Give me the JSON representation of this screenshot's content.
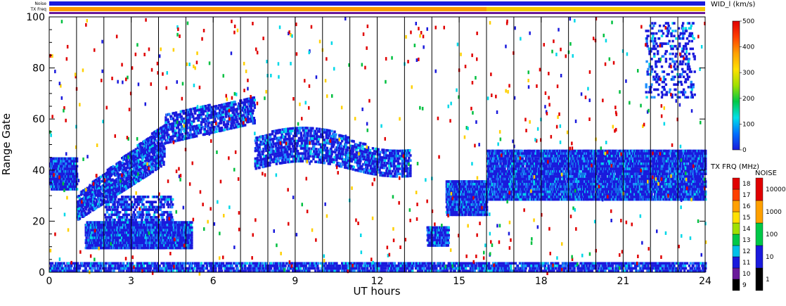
{
  "chart_data": {
    "type": "heatmap",
    "title": "",
    "xlabel": "UT hours",
    "ylabel": "Range Gate",
    "xlim": [
      0,
      24
    ],
    "ylim": [
      0,
      100
    ],
    "x_ticks": [
      0,
      3,
      6,
      9,
      12,
      15,
      18,
      21,
      24
    ],
    "y_ticks": [
      0,
      20,
      40,
      60,
      80,
      100
    ],
    "scan_boundaries_ut": [
      1,
      2,
      3,
      4,
      5,
      6,
      7,
      8,
      9,
      10,
      11,
      12,
      13,
      14,
      15,
      16,
      17,
      18,
      19,
      20,
      21,
      22,
      23
    ],
    "top_bars": {
      "noise_label": "Noise",
      "txfreq_label": "TX Freq",
      "noise_color": "#1a1adc",
      "txfreq_segments": [
        {
          "from": 0,
          "to": 16,
          "color": "#ff9a00"
        },
        {
          "from": 16,
          "to": 24,
          "color": "#f5c800"
        }
      ]
    },
    "main_colorbar": {
      "title": "WID_l (km/s)",
      "ticks": [
        0,
        100,
        200,
        300,
        400,
        500
      ],
      "colors": [
        "#1a1adc",
        "#0070ff",
        "#00e0e8",
        "#00c848",
        "#a0e000",
        "#ffe000",
        "#ffa000",
        "#ff4000",
        "#e00000"
      ]
    },
    "txfreq_colorbar": {
      "title": "TX FRQ (MHz)",
      "labels": [
        "9",
        "10",
        "11",
        "12",
        "13",
        "14",
        "15",
        "16",
        "17",
        "18"
      ],
      "colors": [
        "#000000",
        "#6a1a9a",
        "#1a1adc",
        "#00c0e8",
        "#00c848",
        "#a0e000",
        "#ffe000",
        "#ffa000",
        "#ff4000",
        "#e00000"
      ]
    },
    "noise_colorbar": {
      "title": "NOISE",
      "labels": [
        "1",
        "10",
        "100",
        "1000",
        "10000"
      ],
      "colors": [
        "#000000",
        "#1a1adc",
        "#00c848",
        "#ffa000",
        "#e00000"
      ]
    },
    "scatter_colors": {
      "main": "#1a1adc",
      "light": "#1e90ff",
      "cyan": "#00d8e8",
      "red": "#e00000",
      "green": "#00c040",
      "yellow": "#ffd000"
    },
    "bands": [
      {
        "name": "lower-band",
        "t0": 0,
        "t1": 24,
        "g0": 0,
        "g1": 4,
        "density": 0.55
      },
      {
        "name": "morning-echo",
        "t0": 0,
        "t1": 1,
        "g0": 32,
        "g1": 45,
        "density": 0.8
      },
      {
        "name": "morning-rise",
        "t0": 1,
        "t1": 4.2,
        "g0": 20,
        "g1": 58,
        "density": 0.6
      },
      {
        "name": "near-echo",
        "t0": 1.3,
        "t1": 5.2,
        "g0": 9,
        "g1": 20,
        "density": 0.85
      },
      {
        "name": "mid-echo",
        "t0": 2,
        "t1": 4.5,
        "g0": 17,
        "g1": 30,
        "density": 0.35
      },
      {
        "name": "day-upper",
        "t0": 4.2,
        "t1": 7.5,
        "g0": 50,
        "g1": 68,
        "density": 0.45
      },
      {
        "name": "day-band",
        "t0": 7.5,
        "t1": 13.2,
        "g0": 38,
        "g1": 60,
        "density": 0.45
      },
      {
        "name": "afternoon-patch",
        "t0": 13.8,
        "t1": 14.6,
        "g0": 10,
        "g1": 18,
        "density": 0.7
      },
      {
        "name": "afternoon-drop",
        "t0": 14.5,
        "t1": 16,
        "g0": 22,
        "g1": 36,
        "density": 0.8
      },
      {
        "name": "evening-band",
        "t0": 16,
        "t1": 24,
        "g0": 28,
        "g1": 48,
        "density": 0.8
      },
      {
        "name": "evening-upper",
        "t0": 21.8,
        "t1": 23.6,
        "g0": 68,
        "g1": 98,
        "density": 0.15
      }
    ]
  }
}
